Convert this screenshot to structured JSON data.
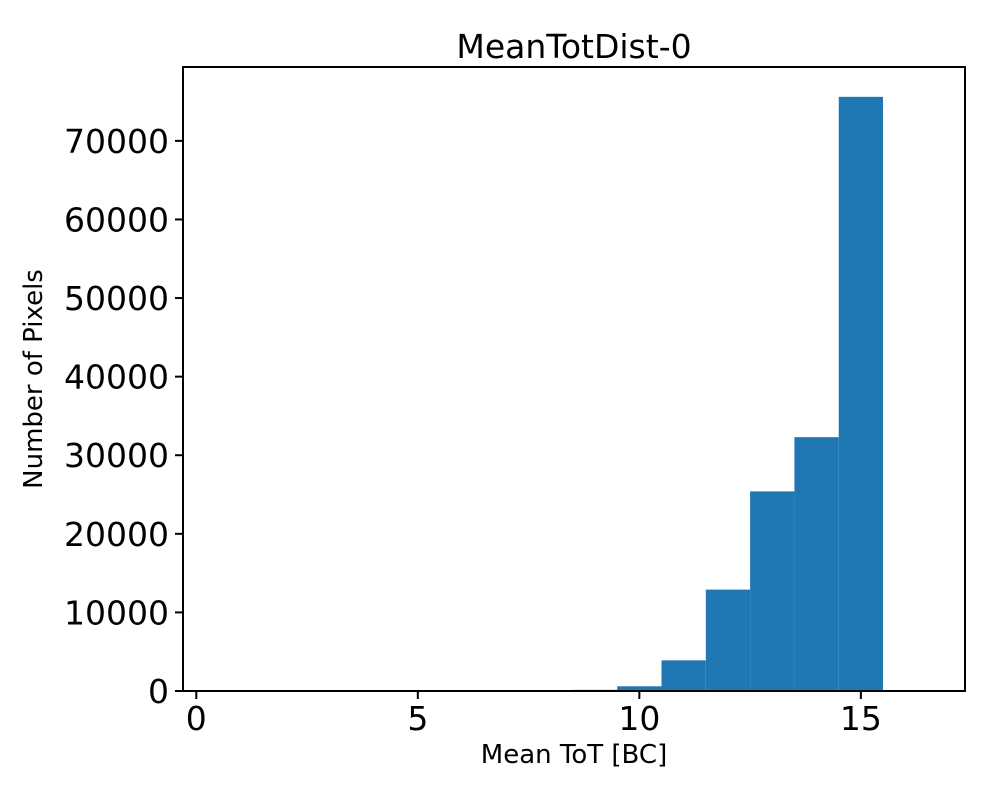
{
  "figure": {
    "background_color": "#ffffff",
    "text_color": "#000000",
    "spine_color": "#000000"
  },
  "chart_data": {
    "type": "bar",
    "subtype": "histogram",
    "title": "MeanTotDist-0",
    "xlabel": "Mean ToT [BC]",
    "ylabel": "Number of Pixels",
    "bar_color": "#1f77b4",
    "bin_width": 1,
    "bin_centers": [
      9,
      10,
      11,
      12,
      13,
      14,
      15
    ],
    "values": [
      150,
      600,
      3900,
      12900,
      25400,
      32300,
      75600
    ],
    "xticks": [
      0,
      5,
      10,
      15
    ],
    "yticks": [
      0,
      10000,
      20000,
      30000,
      40000,
      50000,
      60000,
      70000
    ],
    "xlim": [
      -0.3,
      17.35
    ],
    "ylim": [
      0,
      79400
    ],
    "grid": false,
    "legend": null
  }
}
